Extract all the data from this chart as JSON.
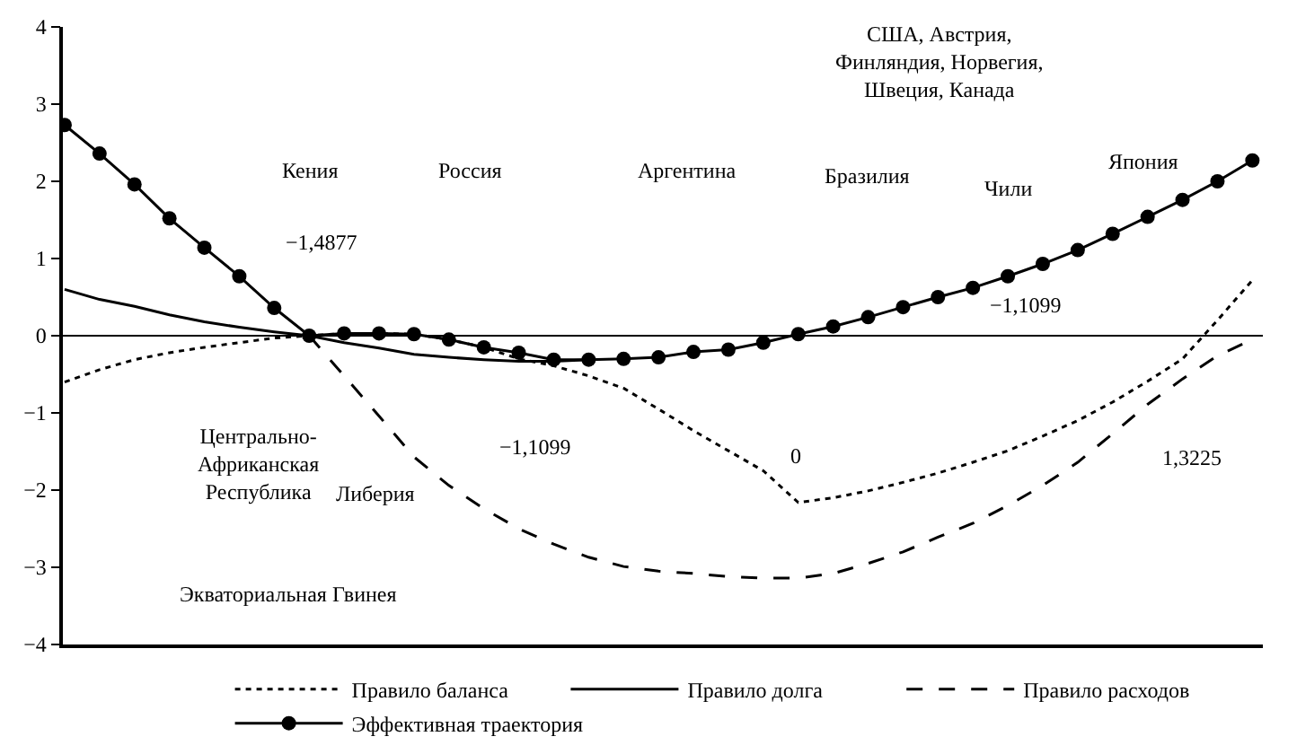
{
  "chart_data": {
    "type": "line",
    "categories": [
      null,
      null,
      null,
      null,
      null,
      null,
      null,
      null,
      null,
      null,
      null,
      null,
      null,
      null,
      null,
      null,
      null,
      null,
      null,
      null,
      null,
      null,
      null,
      null,
      null,
      null,
      null,
      null,
      null,
      null,
      null,
      null,
      null,
      null,
      null
    ],
    "ylim": [
      -4,
      4
    ],
    "yticks": [
      -4,
      -3,
      -2,
      -1,
      0,
      1,
      2,
      3,
      4
    ],
    "grid": false,
    "tick_labels": "y",
    "legend": "bottom",
    "ref_lines": [
      {
        "axis": "y",
        "value": 0
      }
    ],
    "series": [
      {
        "name": "Правило баланса",
        "color": "#000000",
        "line_style": "dotted",
        "marker": "none",
        "values": [
          -0.6,
          -0.44,
          -0.31,
          -0.22,
          -0.15,
          -0.09,
          -0.03,
          0,
          0.03,
          0.03,
          0.02,
          -0.05,
          -0.15,
          -0.3,
          -0.39,
          -0.52,
          -0.68,
          -0.95,
          -1.23,
          -1.49,
          -1.75,
          -2.16,
          -2.1,
          -2.01,
          -1.9,
          -1.78,
          -1.64,
          -1.49,
          -1.3,
          -1.1,
          -0.86,
          -0.59,
          -0.3,
          0.2,
          0.72
        ]
      },
      {
        "name": "Правило долга",
        "color": "#000000",
        "line_style": "solid",
        "marker": "none",
        "values": [
          0.6,
          0.47,
          0.38,
          0.27,
          0.18,
          0.11,
          0.05,
          0,
          -0.09,
          -0.16,
          -0.24,
          -0.28,
          -0.31,
          -0.33,
          -0.33,
          -0.31,
          null,
          null,
          null,
          null,
          null,
          null,
          null,
          null,
          null,
          null,
          null,
          null,
          null,
          null,
          null,
          null,
          null,
          null,
          null
        ]
      },
      {
        "name": "Правило расходов",
        "color": "#000000",
        "line_style": "dashed",
        "marker": "none",
        "values": [
          null,
          null,
          null,
          null,
          null,
          null,
          null,
          0,
          -0.52,
          -1.04,
          -1.57,
          -1.94,
          -2.24,
          -2.5,
          -2.7,
          -2.87,
          -2.99,
          -3.05,
          -3.08,
          -3.12,
          -3.14,
          -3.14,
          -3.08,
          -2.95,
          -2.8,
          -2.61,
          -2.43,
          -2.2,
          -1.94,
          -1.64,
          -1.27,
          -0.89,
          -0.56,
          -0.26,
          -0.05
        ]
      },
      {
        "name": "Эффективная траектория",
        "color": "#000000",
        "line_style": "solid",
        "marker": "circle",
        "values": [
          2.73,
          2.36,
          1.96,
          1.52,
          1.14,
          0.77,
          0.36,
          0,
          0.03,
          0.03,
          0.02,
          -0.05,
          -0.15,
          -0.22,
          -0.31,
          -0.31,
          -0.3,
          -0.28,
          -0.21,
          -0.18,
          -0.09,
          0.02,
          0.12,
          0.24,
          0.37,
          0.5,
          0.62,
          0.77,
          0.93,
          1.11,
          1.32,
          1.54,
          1.76,
          2,
          2.27
        ]
      }
    ],
    "annotations": [
      "Кения",
      "Россия",
      "Аргентина",
      "Бразилия",
      "Чили",
      "Япония",
      "США, Австрия,\nФинляндия, Норвегия,\nШвеция, Канада",
      "−1,4877",
      "−1,1099",
      "0",
      "−1,1099",
      "1,3225",
      "Центрально-\nАфриканская\nРеспублика",
      "Либерия",
      "Экваториальная Гвинея"
    ]
  }
}
